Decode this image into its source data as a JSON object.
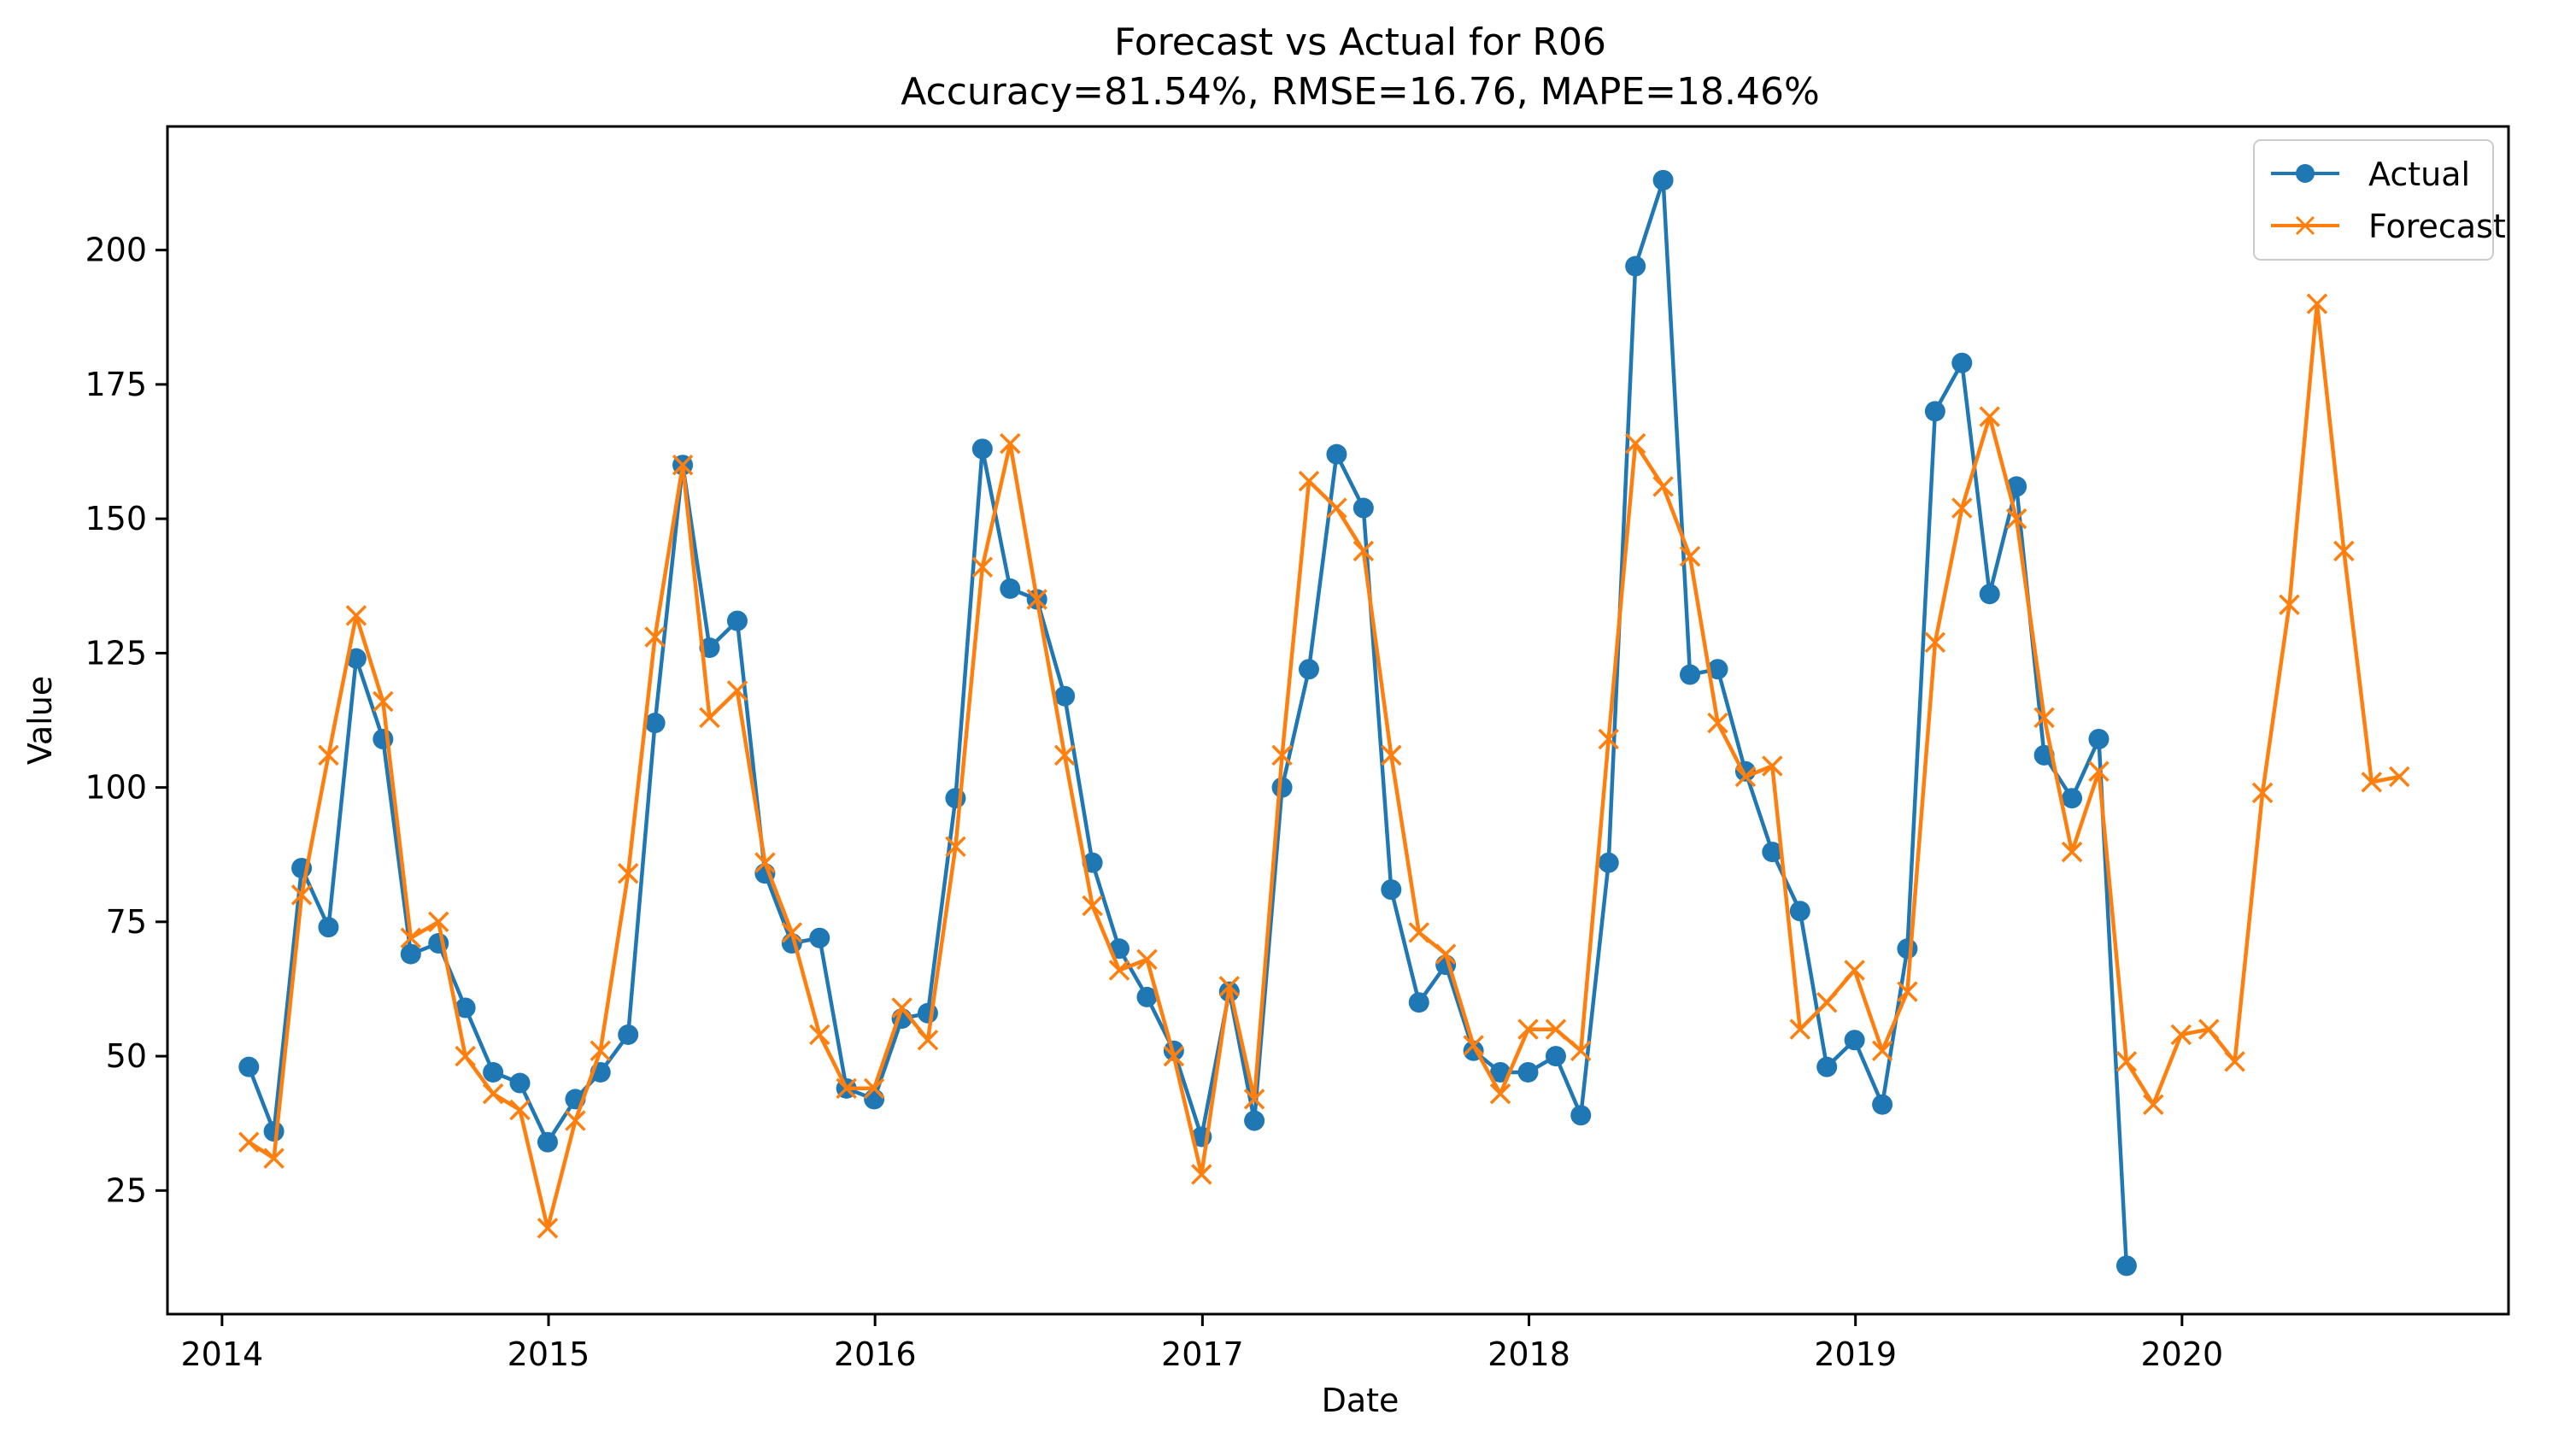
{
  "chart_data": {
    "type": "line",
    "title": "Forecast vs Actual for R06",
    "subtitle": "Accuracy=81.54%, RMSE=16.76, MAPE=18.46%",
    "xlabel": "Date",
    "ylabel": "Value",
    "xlim": [
      "2013-11-01",
      "2020-12-31"
    ],
    "ylim": [
      2,
      223
    ],
    "x_ticks": [
      "2014",
      "2015",
      "2016",
      "2017",
      "2018",
      "2019",
      "2020"
    ],
    "y_ticks": [
      25,
      50,
      75,
      100,
      125,
      150,
      175,
      200
    ],
    "grid": false,
    "legend": {
      "placement": "top-right",
      "entries": [
        "Actual",
        "Forecast"
      ]
    },
    "series": [
      {
        "name": "Actual",
        "color": "#1f77b4",
        "marker": "circle",
        "x": [
          "2014-01-31",
          "2014-02-28",
          "2014-03-31",
          "2014-04-30",
          "2014-05-31",
          "2014-06-30",
          "2014-07-31",
          "2014-08-31",
          "2014-09-30",
          "2014-10-31",
          "2014-11-30",
          "2014-12-31",
          "2015-01-31",
          "2015-02-28",
          "2015-03-31",
          "2015-04-30",
          "2015-05-31",
          "2015-06-30",
          "2015-07-31",
          "2015-08-31",
          "2015-09-30",
          "2015-10-31",
          "2015-11-30",
          "2015-12-31",
          "2016-01-31",
          "2016-02-29",
          "2016-03-31",
          "2016-04-30",
          "2016-05-31",
          "2016-06-30",
          "2016-07-31",
          "2016-08-31",
          "2016-09-30",
          "2016-10-31",
          "2016-11-30",
          "2016-12-31",
          "2017-01-31",
          "2017-02-28",
          "2017-03-31",
          "2017-04-30",
          "2017-05-31",
          "2017-06-30",
          "2017-07-31",
          "2017-08-31",
          "2017-09-30",
          "2017-10-31",
          "2017-11-30",
          "2017-12-31",
          "2018-01-31",
          "2018-02-28",
          "2018-03-31",
          "2018-04-30",
          "2018-05-31",
          "2018-06-30",
          "2018-07-31",
          "2018-08-31",
          "2018-09-30",
          "2018-10-31",
          "2018-11-30",
          "2018-12-31",
          "2019-01-31",
          "2019-02-28",
          "2019-03-31",
          "2019-04-30",
          "2019-05-31",
          "2019-06-30",
          "2019-07-31",
          "2019-08-31",
          "2019-09-30",
          "2019-10-31"
        ],
        "values": [
          48,
          36,
          85,
          74,
          124,
          109,
          69,
          71,
          59,
          47,
          45,
          34,
          42,
          47,
          54,
          112,
          160,
          126,
          131,
          84,
          71,
          72,
          44,
          42,
          57,
          58,
          98,
          163,
          137,
          135,
          117,
          86,
          70,
          61,
          51,
          35,
          62,
          38,
          100,
          122,
          162,
          152,
          81,
          60,
          67,
          51,
          47,
          47,
          50,
          39,
          86,
          197,
          213,
          121,
          122,
          103,
          88,
          77,
          48,
          53,
          41,
          70,
          170,
          179,
          136,
          156,
          106,
          98,
          109,
          11
        ]
      },
      {
        "name": "Forecast",
        "color": "#ff7f0e",
        "marker": "x",
        "x": [
          "2014-01-31",
          "2014-02-28",
          "2014-03-31",
          "2014-04-30",
          "2014-05-31",
          "2014-06-30",
          "2014-07-31",
          "2014-08-31",
          "2014-09-30",
          "2014-10-31",
          "2014-11-30",
          "2014-12-31",
          "2015-01-31",
          "2015-02-28",
          "2015-03-31",
          "2015-04-30",
          "2015-05-31",
          "2015-06-30",
          "2015-07-31",
          "2015-08-31",
          "2015-09-30",
          "2015-10-31",
          "2015-11-30",
          "2015-12-31",
          "2016-01-31",
          "2016-02-29",
          "2016-03-31",
          "2016-04-30",
          "2016-05-31",
          "2016-06-30",
          "2016-07-31",
          "2016-08-31",
          "2016-09-30",
          "2016-10-31",
          "2016-11-30",
          "2016-12-31",
          "2017-01-31",
          "2017-02-28",
          "2017-03-31",
          "2017-04-30",
          "2017-05-31",
          "2017-06-30",
          "2017-07-31",
          "2017-08-31",
          "2017-09-30",
          "2017-10-31",
          "2017-11-30",
          "2017-12-31",
          "2018-01-31",
          "2018-02-28",
          "2018-03-31",
          "2018-04-30",
          "2018-05-31",
          "2018-06-30",
          "2018-07-31",
          "2018-08-31",
          "2018-09-30",
          "2018-10-31",
          "2018-11-30",
          "2018-12-31",
          "2019-01-31",
          "2019-02-28",
          "2019-03-31",
          "2019-04-30",
          "2019-05-31",
          "2019-06-30",
          "2019-07-31",
          "2019-08-31",
          "2019-09-30",
          "2019-10-31",
          "2019-11-30",
          "2019-12-31",
          "2020-01-31",
          "2020-02-29",
          "2020-03-31",
          "2020-04-30",
          "2020-05-31",
          "2020-06-30",
          "2020-07-31",
          "2020-08-31"
        ],
        "values": [
          34,
          31,
          80,
          106,
          132,
          116,
          72,
          75,
          50,
          43,
          40,
          18,
          38,
          51,
          84,
          128,
          160,
          113,
          118,
          86,
          73,
          54,
          44,
          44,
          59,
          53,
          89,
          141,
          164,
          135,
          106,
          78,
          66,
          68,
          50,
          28,
          63,
          42,
          106,
          157,
          152,
          144,
          106,
          73,
          69,
          52,
          43,
          55,
          55,
          51,
          109,
          164,
          156,
          143,
          112,
          102,
          104,
          55,
          60,
          66,
          51,
          62,
          127,
          152,
          169,
          150,
          113,
          88,
          103,
          49,
          41,
          54,
          55,
          49,
          99,
          134,
          190,
          144,
          101,
          102
        ]
      }
    ]
  }
}
